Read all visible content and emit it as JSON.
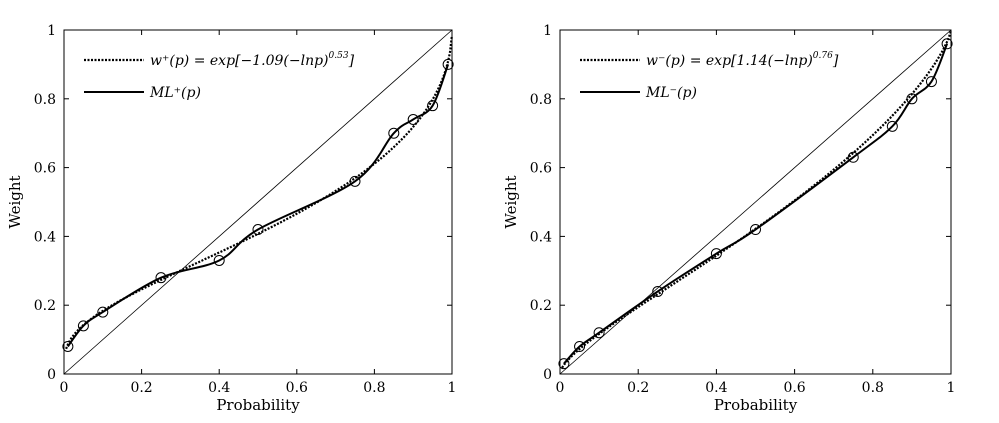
{
  "chart_data": [
    {
      "type": "line",
      "xlabel": "Probability",
      "ylabel": "Weight",
      "xlim": [
        0,
        1
      ],
      "ylim": [
        0,
        1
      ],
      "xticks": [
        "0",
        "0.2",
        "0.4",
        "0.6",
        "0.8",
        "1"
      ],
      "yticks": [
        "0",
        "0.2",
        "0.4",
        "0.6",
        "0.8",
        "1"
      ],
      "legend_position": "top-left",
      "series": [
        {
          "name": "w⁺(p) = exp[−1.09(−lnp)^0.53]",
          "label_main": "w⁺(p) = exp[−1.09(−lnp)",
          "label_exp": "0.53",
          "label_end": "]",
          "style": "dotted",
          "param_a": 1.09,
          "param_b": 0.53
        },
        {
          "name": "ML⁺(p)",
          "style": "solid",
          "x": [
            0.01,
            0.05,
            0.1,
            0.25,
            0.4,
            0.5,
            0.75,
            0.85,
            0.9,
            0.95,
            0.99
          ],
          "y": [
            0.08,
            0.14,
            0.18,
            0.28,
            0.33,
            0.42,
            0.56,
            0.7,
            0.74,
            0.78,
            0.9
          ]
        }
      ],
      "diagonal": true
    },
    {
      "type": "line",
      "xlabel": "Probability",
      "ylabel": "Weight",
      "xlim": [
        0,
        1
      ],
      "ylim": [
        0,
        1
      ],
      "xticks": [
        "0",
        "0.2",
        "0.4",
        "0.6",
        "0.8",
        "1"
      ],
      "yticks": [
        "0",
        "0.2",
        "0.4",
        "0.6",
        "0.8",
        "1"
      ],
      "legend_position": "top-left",
      "series": [
        {
          "name": "w⁻(p) = exp[1.14(−lnp)^0.76]",
          "label_main": "w⁻(p) = exp[1.14(−lnp)",
          "label_exp": "0.76",
          "label_end": "]",
          "style": "dotted",
          "param_a": 1.14,
          "param_b": 0.76
        },
        {
          "name": "ML⁻(p)",
          "style": "solid",
          "x": [
            0.01,
            0.05,
            0.1,
            0.25,
            0.4,
            0.5,
            0.75,
            0.85,
            0.9,
            0.95,
            0.99
          ],
          "y": [
            0.03,
            0.08,
            0.12,
            0.24,
            0.35,
            0.42,
            0.63,
            0.72,
            0.8,
            0.85,
            0.96
          ]
        }
      ],
      "diagonal": true
    }
  ]
}
